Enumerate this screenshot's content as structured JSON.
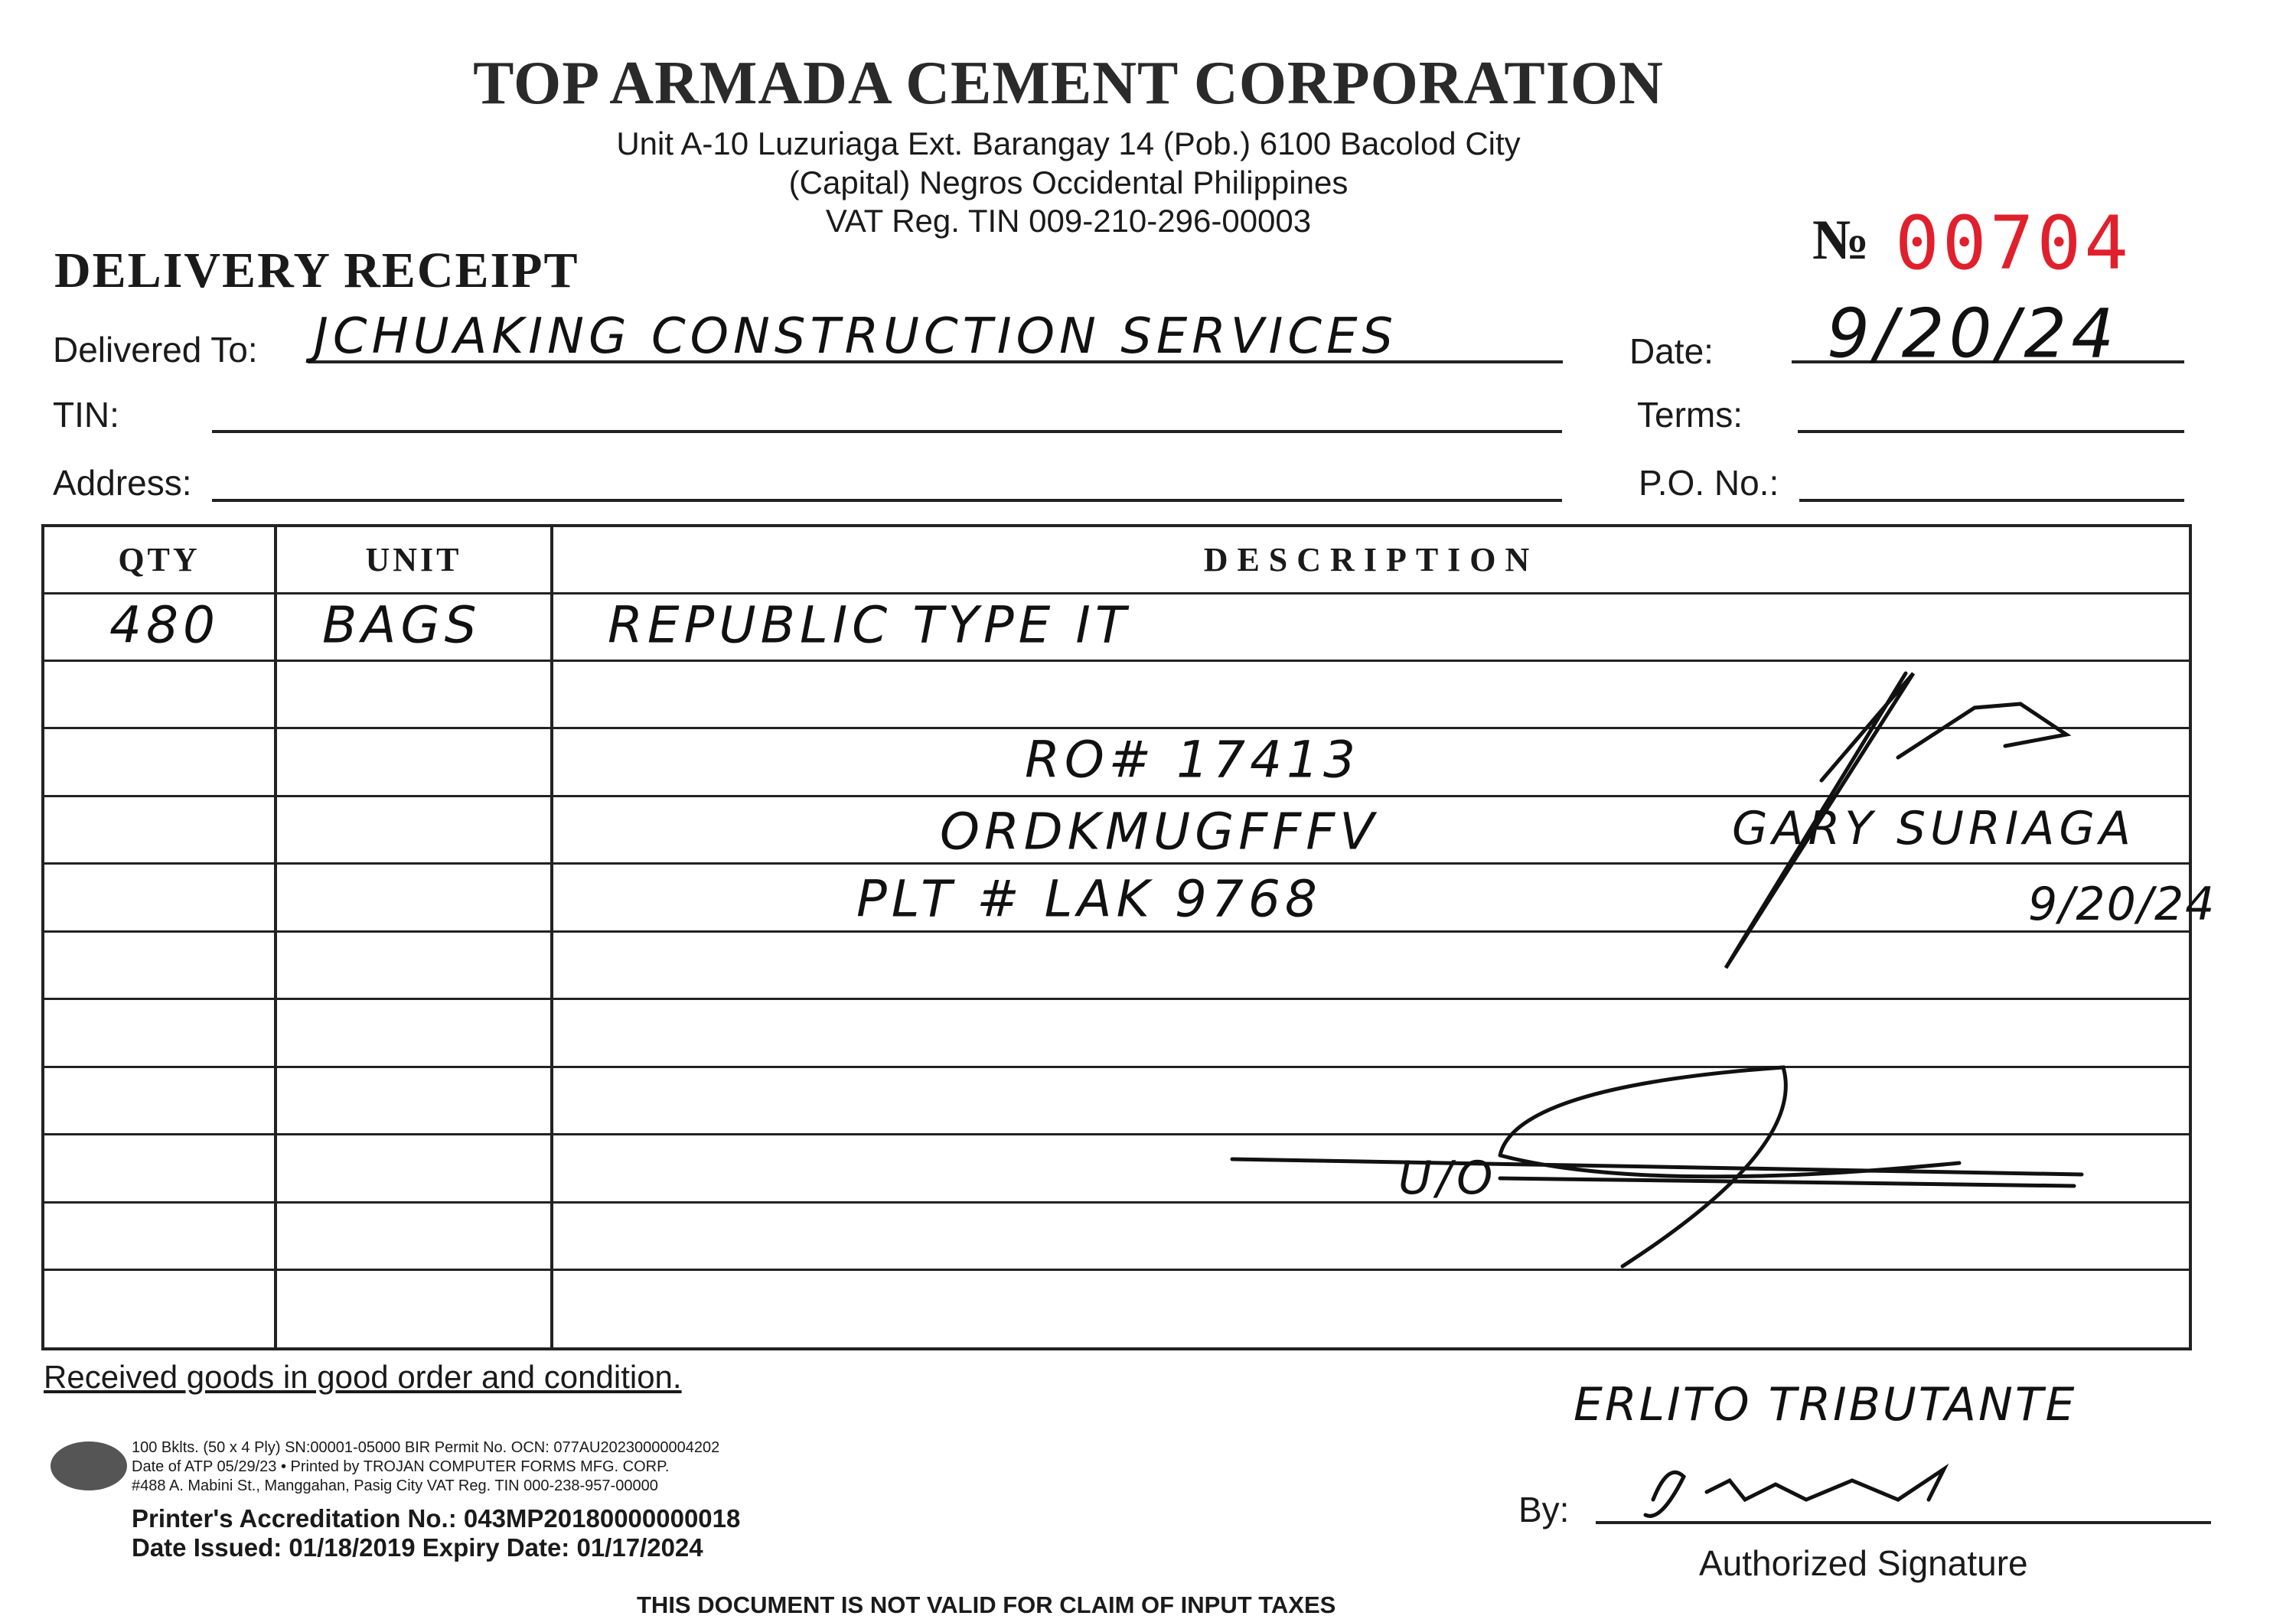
{
  "header": {
    "company": "TOP ARMADA CEMENT CORPORATION",
    "address_lines": [
      "Unit A-10 Luzuriaga Ext. Barangay 14 (Pob.) 6100 Bacolod City",
      "(Capital) Negros Occidental Philippines",
      "VAT Reg. TIN 009-210-296-00003"
    ],
    "doc_title": "DELIVERY RECEIPT",
    "number_label": "№",
    "number": "00704"
  },
  "fields": {
    "delivered_to_label": "Delivered To:",
    "delivered_to": "JCHUAKING CONSTRUCTION SERVICES",
    "date_label": "Date:",
    "date": "9/20/24",
    "tin_label": "TIN:",
    "tin": "",
    "terms_label": "Terms:",
    "terms": "",
    "address_label": "Address:",
    "address": "",
    "po_label": "P.O. No.:",
    "po": ""
  },
  "table": {
    "headers": [
      "QTY",
      "UNIT",
      "DESCRIPTION"
    ],
    "rows": [
      {
        "qty": "480",
        "unit": "BAGS",
        "description": "REPUBLIC TYPE IT"
      }
    ],
    "notes": [
      "RO# 17413",
      "ORDKMUGFFFV",
      "PLT # LAK 9768"
    ],
    "received_by_name": "GARY SURIAGA",
    "received_date": "9/20/24",
    "struck_note": "U/O"
  },
  "footer": {
    "received_text": "Received goods in good order and condition.",
    "signer_name": "ERLITO TRIBUTANTE",
    "by_label": "By:",
    "authorized_signature": "Authorized Signature",
    "printer_lines": [
      "100 Bklts. (50 x 4 Ply) SN:00001-05000 BIR Permit No. OCN: 077AU20230000004202",
      "Date of ATP 05/29/23   • Printed by TROJAN COMPUTER FORMS MFG. CORP.",
      "#488 A. Mabini St., Manggahan, Pasig City  VAT Reg. TIN 000-238-957-00000"
    ],
    "accreditation": "Printer's Accreditation No.: 043MP20180000000018",
    "dates": "Date Issued: 01/18/2019   Expiry Date: 01/17/2024",
    "disclaimer": "THIS DOCUMENT IS NOT VALID FOR CLAIM OF INPUT TAXES"
  },
  "colors": {
    "number": "#e0202c",
    "ink": "#111111"
  }
}
